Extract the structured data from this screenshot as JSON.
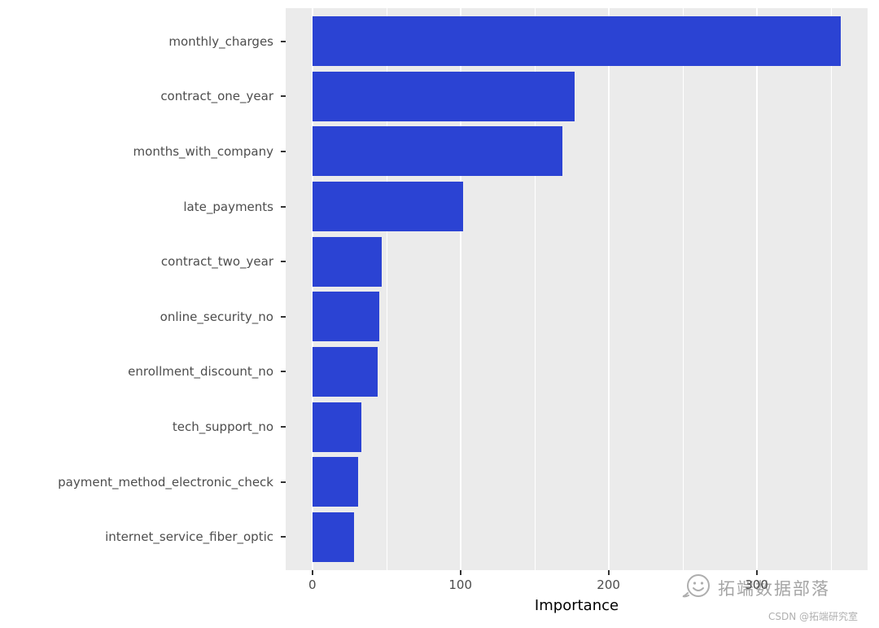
{
  "chart_data": {
    "type": "bar",
    "orientation": "horizontal",
    "title": "",
    "xlabel": "Importance",
    "ylabel": "",
    "categories": [
      "monthly_charges",
      "contract_one_year",
      "months_with_company",
      "late_payments",
      "contract_two_year",
      "online_security_no",
      "enrollment_discount_no",
      "tech_support_no",
      "payment_method_electronic_check",
      "internet_service_fiber_optic"
    ],
    "values": [
      357,
      177,
      169,
      102,
      47,
      45,
      44,
      33,
      31,
      28
    ],
    "x_ticks": [
      0,
      100,
      200,
      300
    ],
    "x_minor_ticks": [
      50,
      150,
      250,
      350
    ],
    "xlim": [
      -18,
      375
    ],
    "bar_color": "#2b43d3",
    "panel_bg": "#ebebeb",
    "grid_color": "#ffffff",
    "axis_text_color": "#4d4d4d",
    "legend": "none",
    "grid": "on"
  },
  "watermark": {
    "text": "拓端数据部落",
    "subtext": "CSDN @拓端研究室",
    "color": "#8f8f8f",
    "subtext_color": "#b0b0b0"
  }
}
